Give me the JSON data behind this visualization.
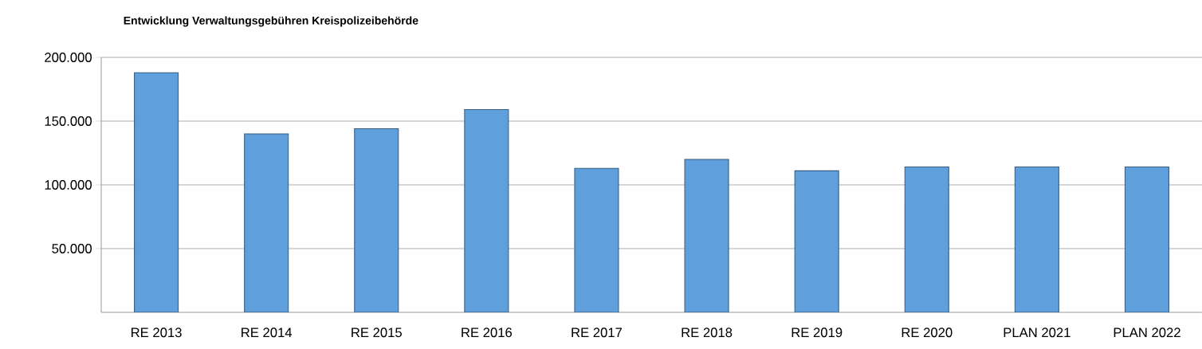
{
  "chart_data": {
    "type": "bar",
    "title": "Entwicklung Verwaltungsgebühren Kreispolizeibehörde",
    "categories": [
      "RE 2013",
      "RE 2014",
      "RE 2015",
      "RE 2016",
      "RE 2017",
      "RE 2018",
      "RE 2019",
      "RE 2020",
      "PLAN 2021",
      "PLAN 2022"
    ],
    "values": [
      188000,
      140000,
      144000,
      159000,
      113000,
      120000,
      111000,
      114000,
      114000,
      114000
    ],
    "color": "#5f9fdc",
    "ylim": [
      0,
      200000
    ],
    "yticks": [
      {
        "value": 50000,
        "label": "50.000"
      },
      {
        "value": 100000,
        "label": "100.000"
      },
      {
        "value": 150000,
        "label": "150.000"
      },
      {
        "value": 200000,
        "label": "200.000"
      }
    ],
    "grid": "y"
  }
}
